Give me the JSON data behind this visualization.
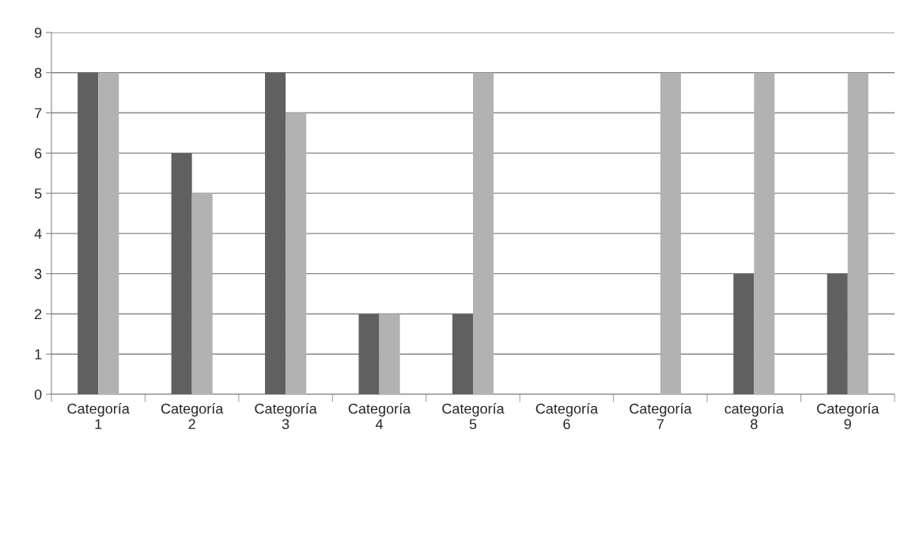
{
  "chart_data": {
    "type": "bar",
    "categories": [
      "Categoría 1",
      "Categoría 2",
      "Categoría 3",
      "Categoría 4",
      "Categoría 5",
      "Categoría 6",
      "Categoría 7",
      "categoría 8",
      "Categoría 9"
    ],
    "series": [
      {
        "color": "#606060",
        "values": [
          8,
          6,
          8,
          2,
          2,
          null,
          null,
          3,
          3
        ]
      },
      {
        "color": "#b2b2b2",
        "values": [
          8,
          5,
          7,
          2,
          8,
          null,
          8,
          8,
          8
        ]
      }
    ],
    "ylim": [
      0,
      9
    ],
    "yticks": [
      0,
      1,
      2,
      3,
      4,
      5,
      6,
      7,
      8,
      9
    ],
    "grid": "y"
  }
}
